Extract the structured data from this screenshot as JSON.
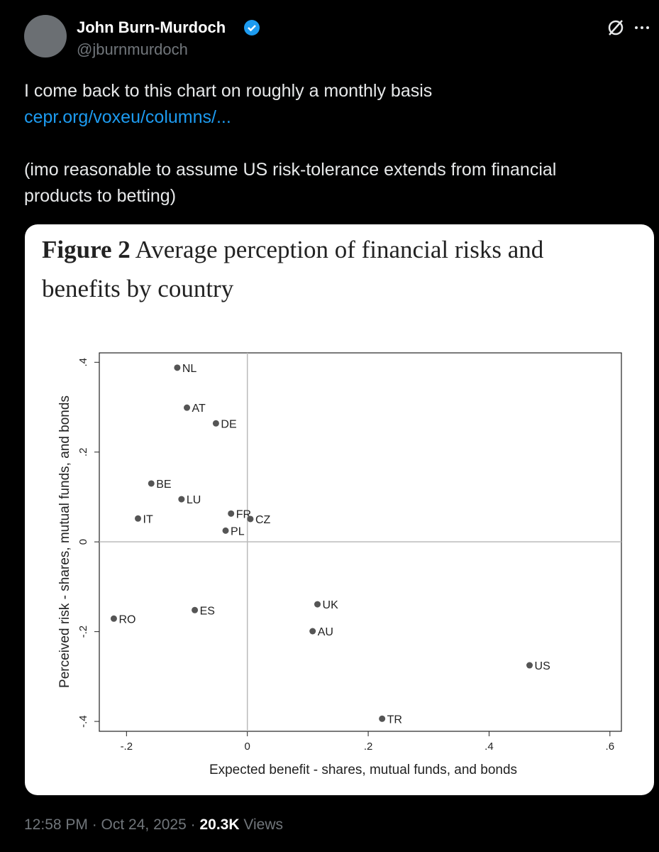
{
  "tweet": {
    "name": "John Burn-Murdoch",
    "handle": "@jburnmurdoch",
    "text_1": "I come back to this chart on roughly a monthly basis",
    "link": "cepr.org/voxeu/columns/...",
    "text_2": "(imo reasonable to assume US risk-tolerance extends from financial products to betting)",
    "time": "12:58 PM · Oct 24, 2025 · ",
    "views_count": "20.3K",
    "views_label": "Views"
  },
  "chart_data": {
    "type": "scatter",
    "figure_label": "Figure 2",
    "title": "Average perception of financial risks and benefits by country",
    "x_label": "Expected benefit - shares, mutual funds, and bonds",
    "y_label": "Perceived risk - shares, mutual funds, and bonds",
    "color": "#555555",
    "labels": [
      "NL",
      "AT",
      "DE",
      "BE",
      "LU",
      "FR",
      "CZ",
      "PL",
      "IT",
      "RO",
      "ES",
      "UK",
      "AU",
      "US",
      "TR"
    ],
    "x": [
      -0.116,
      -0.1,
      -0.052,
      -0.159,
      -0.109,
      -0.027,
      0.005,
      -0.036,
      -0.181,
      -0.221,
      -0.087,
      0.116,
      0.108,
      0.467,
      0.223
    ],
    "values": [
      0.388,
      0.299,
      0.264,
      0.13,
      0.095,
      0.063,
      0.051,
      0.025,
      0.052,
      -0.171,
      -0.152,
      -0.139,
      -0.199,
      -0.275,
      -0.394
    ],
    "xlim": [
      -0.245,
      0.619
    ],
    "ylim": [
      -0.422,
      0.421
    ],
    "xticks": [
      {
        "value": -0.2,
        "label": "-.2"
      },
      0,
      {
        "value": 0.2,
        "label": ".2"
      },
      {
        "value": 0.4,
        "label": ".4"
      },
      {
        "value": 0.6,
        "label": ".6"
      }
    ],
    "yticks": [
      {
        "value": -0.4,
        "label": "-.4"
      },
      {
        "value": -0.2,
        "label": "-.2"
      },
      0,
      {
        "value": 0.2,
        "label": ".2"
      },
      {
        "value": 0.4,
        "label": ".4"
      }
    ],
    "reference_lines": true
  }
}
